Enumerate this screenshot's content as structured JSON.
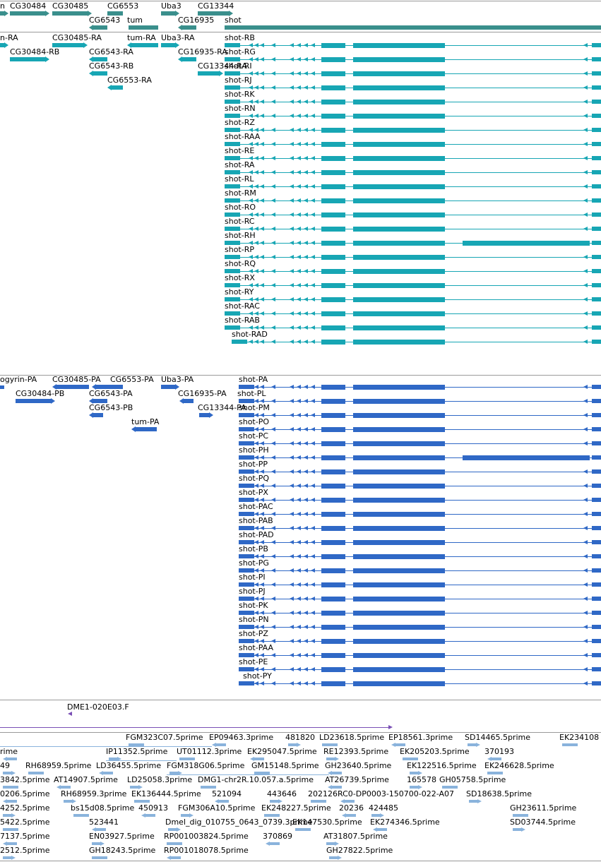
{
  "colors": {
    "gene": "#3a8f8c",
    "transcript": "#17a6b4",
    "protein": "#2f68c6",
    "insertion": "#7a4fb5",
    "est": "#8ab3dc",
    "divider": "#9a9a9a"
  },
  "genes": {
    "labels": [
      "n",
      "CG30484",
      "CG30485",
      "CG6553",
      "Uba3",
      "CG13344",
      "CG6543",
      "tum",
      "CG16935",
      "shot"
    ]
  },
  "transcripts": {
    "small_labels": [
      "n-RA",
      "CG30485-RA",
      "tum-RA",
      "Uba3-RA",
      "CG30484-RB",
      "CG6543-RA",
      "CG16935-RA",
      "CG6543-RB",
      "CG13344-RA",
      "CG6553-RA"
    ],
    "shot_labels": [
      "shot-RB",
      "shot-RG",
      "shot-RI",
      "shot-RJ",
      "shot-RK",
      "shot-RN",
      "shot-RZ",
      "shot-RAA",
      "shot-RE",
      "shot-RA",
      "shot-RL",
      "shot-RM",
      "shot-RO",
      "shot-RC",
      "shot-RH",
      "shot-RP",
      "shot-RQ",
      "shot-RX",
      "shot-RY",
      "shot-RAC",
      "shot-RAB",
      "shot-RAD"
    ]
  },
  "proteins": {
    "small_labels": [
      "ogyrin-PA",
      "CG30485-PA",
      "CG6553-PA",
      "Uba3-PA",
      "CG30484-PB",
      "CG6543-PA",
      "CG16935-PA",
      "CG6543-PB",
      "CG13344-PA",
      "tum-PA"
    ],
    "shot_labels": [
      "shot-PA",
      "shot-PL",
      "shot-PM",
      "shot-PO",
      "shot-PC",
      "shot-PH",
      "shot-PP",
      "shot-PQ",
      "shot-PX",
      "shot-PAC",
      "shot-PAB",
      "shot-PAD",
      "shot-PB",
      "shot-PG",
      "shot-PI",
      "shot-PJ",
      "shot-PK",
      "shot-PN",
      "shot-PZ",
      "shot-PAA",
      "shot-PE",
      "shot-PY"
    ]
  },
  "insertions": {
    "label": "DME1-020E03.F"
  },
  "ests": {
    "rows": [
      [
        "FGM323C07.5prime",
        "EP09463.3prime",
        "481820",
        "LD23618.5prime",
        "EP18561.3prime",
        "SD14465.5prime",
        "EK234108"
      ],
      [
        "rime",
        "IP11352.5prime",
        "UT01112.3prime",
        "EK295047.5prime",
        "RE12393.5prime",
        "EK205203.5prime",
        "370193"
      ],
      [
        "49",
        "RH68959.5prime",
        "LD36455.5prime",
        "FGM318G06.5prime",
        "GM15148.5prime",
        "GH23640.5prime",
        "EK122516.5prime",
        "EK246628.5prime"
      ],
      [
        "3842.5prime",
        "AT14907.5prime",
        "LD25058.3prime",
        "DMG1-chr2R.10.057.a.5prime",
        "AT26739.5prime",
        "165578",
        "GH05758.5prime"
      ],
      [
        "0206.5prime",
        "RH68959.3prime",
        "EK136444.5prime",
        "521094",
        "443646",
        "202126",
        "RC0-DP0003-150700-022-A07",
        "SD18638.5prime"
      ],
      [
        "4252.5prime",
        "bs15d08.5prime",
        "450913",
        "FGM306A10.5prime",
        "EK248227.5prime",
        "20236",
        "424485",
        "GH23611.5prime"
      ],
      [
        "5422.5prime",
        "523441",
        "Dmel_dig_010755_0643_0739.3prime",
        "EK147530.5prime",
        "EK274346.5prime",
        "SD03744.5prime"
      ],
      [
        "7137.5prime",
        "EN03927.5prime",
        "RP001003824.5prime",
        "370869",
        "AT31807.5prime"
      ],
      [
        "2512.5prime",
        "GH18243.5prime",
        "RP001018078.5prime",
        "GH27822.5prime"
      ]
    ]
  }
}
